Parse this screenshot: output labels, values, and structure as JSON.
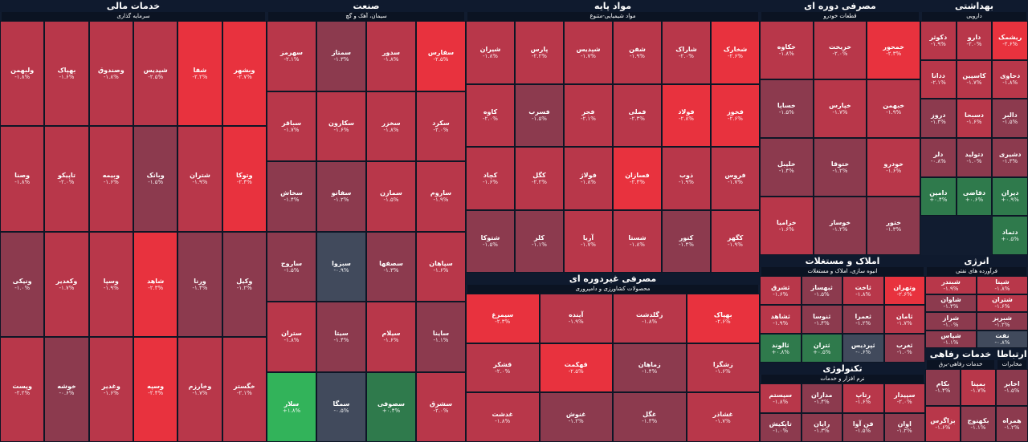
{
  "colors": {
    "background": "#0f1a2e",
    "strong_negative": "#e8323e",
    "negative": "#b8374a",
    "mild_negative": "#8c3a4e",
    "neutral": "#414a5c",
    "mild_positive": "#2f7a4c",
    "positive": "#32b35a",
    "strong_positive": "#3fe05f"
  },
  "sectors": [
    {
      "id": "financial",
      "title": "خدمات مالی",
      "sub": "سرمایه گذاری",
      "tiles": [
        {
          "name": "وبشهر",
          "val": "-۲.۷%",
          "c": "strong_negative"
        },
        {
          "name": "شفا",
          "val": "-۲.۲%",
          "c": "strong_negative"
        },
        {
          "name": "شپدیس",
          "val": "-۲.۵%",
          "c": "negative"
        },
        {
          "name": "وصندوق",
          "val": "-۱.۸%",
          "c": "negative"
        },
        {
          "name": "بهپاک",
          "val": "-۱.۶%",
          "c": "negative"
        },
        {
          "name": "ولبهمن",
          "val": "-۱.۸%",
          "c": "negative"
        },
        {
          "name": "وتوکا",
          "val": "-۲.۴%",
          "c": "strong_negative"
        },
        {
          "name": "شتران",
          "val": "-۱.۹%",
          "c": "negative"
        },
        {
          "name": "وبانک",
          "val": "-۱.۵%",
          "c": "mild_negative"
        },
        {
          "name": "وبیمه",
          "val": "-۱.۶%",
          "c": "negative"
        },
        {
          "name": "تاپیکو",
          "val": "-۲.۰%",
          "c": "negative"
        },
        {
          "name": "وصنا",
          "val": "-۱.۸%",
          "c": "negative"
        },
        {
          "name": "وکیل",
          "val": "-۱.۲%",
          "c": "mild_negative"
        },
        {
          "name": "ورنا",
          "val": "-۱.۴%",
          "c": "mild_negative"
        },
        {
          "name": "شاهد",
          "val": "-۲.۳%",
          "c": "strong_negative"
        },
        {
          "name": "وسپا",
          "val": "-۱.۹%",
          "c": "negative"
        },
        {
          "name": "وکغدیر",
          "val": "-۱.۷%",
          "c": "negative"
        },
        {
          "name": "ونیکی",
          "val": "-۱.۰%",
          "c": "mild_negative"
        },
        {
          "name": "خگستر",
          "val": "-۲.۱%",
          "c": "negative"
        },
        {
          "name": "وخارزم",
          "val": "-۱.۷%",
          "c": "negative"
        },
        {
          "name": "وسپه",
          "val": "-۲.۴%",
          "c": "strong_negative"
        },
        {
          "name": "وغدیر",
          "val": "-۱.۶%",
          "c": "negative"
        },
        {
          "name": "خوشه",
          "val": "-۰.۶%",
          "c": "mild_negative"
        },
        {
          "name": "وپست",
          "val": "-۲.۲%",
          "c": "negative"
        }
      ]
    },
    {
      "id": "industry",
      "title": "صنعت",
      "sub": "سیمان، آهک و گچ",
      "tiles": [
        {
          "name": "سفارس",
          "val": "-۲.۵%",
          "c": "strong_negative"
        },
        {
          "name": "سدور",
          "val": "-۱.۸%",
          "c": "negative"
        },
        {
          "name": "سمتاز",
          "val": "-۱.۳%",
          "c": "mild_negative"
        },
        {
          "name": "سهرمز",
          "val": "-۲.۱%",
          "c": "negative"
        },
        {
          "name": "سکرد",
          "val": "-۲.۰%",
          "c": "negative"
        },
        {
          "name": "سخزر",
          "val": "-۱.۸%",
          "c": "negative"
        },
        {
          "name": "سکارون",
          "val": "-۱.۶%",
          "c": "negative"
        },
        {
          "name": "سباقر",
          "val": "-۱.۷%",
          "c": "negative"
        },
        {
          "name": "ساروم",
          "val": "-۱.۹%",
          "c": "negative"
        },
        {
          "name": "سمازن",
          "val": "-۱.۵%",
          "c": "negative"
        },
        {
          "name": "سفانو",
          "val": "-۱.۲%",
          "c": "mild_negative"
        },
        {
          "name": "سخاش",
          "val": "-۱.۴%",
          "c": "mild_negative"
        },
        {
          "name": "سپاهان",
          "val": "-۱.۶%",
          "c": "negative"
        },
        {
          "name": "سصفها",
          "val": "-۱.۳%",
          "c": "mild_negative"
        },
        {
          "name": "سبزوا",
          "val": "-۰.۹%",
          "c": "neutral"
        },
        {
          "name": "ساروج",
          "val": "-۱.۵%",
          "c": "mild_negative"
        },
        {
          "name": "ساینا",
          "val": "-۱.۱%",
          "c": "mild_negative"
        },
        {
          "name": "سیلام",
          "val": "-۱.۶%",
          "c": "negative"
        },
        {
          "name": "سیتا",
          "val": "-۱.۴%",
          "c": "mild_negative"
        },
        {
          "name": "ستران",
          "val": "-۱.۸%",
          "c": "negative"
        },
        {
          "name": "سشرق",
          "val": "-۲.۰%",
          "c": "negative"
        },
        {
          "name": "سصوفی",
          "val": "+۰.۴%",
          "c": "mild_positive"
        },
        {
          "name": "سمگا",
          "val": "-۰.۵%",
          "c": "neutral"
        },
        {
          "name": "سلار",
          "val": "+۱.۸%",
          "c": "positive"
        }
      ]
    },
    {
      "id": "basic",
      "title": "مواد پایه",
      "sub": "مواد شیمیایی-متنوع",
      "tiles": [
        {
          "name": "شخارک",
          "val": "-۲.۶%",
          "c": "strong_negative"
        },
        {
          "name": "شاراک",
          "val": "-۲.۰%",
          "c": "negative"
        },
        {
          "name": "شفن",
          "val": "-۱.۹%",
          "c": "negative"
        },
        {
          "name": "شپدیس",
          "val": "-۱.۷%",
          "c": "negative"
        },
        {
          "name": "پارس",
          "val": "-۲.۲%",
          "c": "negative"
        },
        {
          "name": "شیران",
          "val": "-۱.۸%",
          "c": "negative"
        },
        {
          "name": "فخوز",
          "val": "-۲.۶%",
          "c": "strong_negative"
        },
        {
          "name": "فولاد",
          "val": "-۲.۸%",
          "c": "strong_negative"
        },
        {
          "name": "فملی",
          "val": "-۲.۳%",
          "c": "negative"
        },
        {
          "name": "فجر",
          "val": "-۲.۱%",
          "c": "negative"
        },
        {
          "name": "فسرب",
          "val": "-۱.۵%",
          "c": "mild_negative"
        },
        {
          "name": "کاوه",
          "val": "-۲.۰%",
          "c": "negative"
        },
        {
          "name": "فروس",
          "val": "-۱.۷%",
          "c": "negative"
        },
        {
          "name": "ذوب",
          "val": "-۱.۹%",
          "c": "negative"
        },
        {
          "name": "فسازان",
          "val": "-۲.۴%",
          "c": "strong_negative"
        },
        {
          "name": "فولاژ",
          "val": "-۱.۸%",
          "c": "negative"
        },
        {
          "name": "کگل",
          "val": "-۲.۲%",
          "c": "negative"
        },
        {
          "name": "کچاد",
          "val": "-۱.۶%",
          "c": "negative"
        },
        {
          "name": "کگهر",
          "val": "-۱.۹%",
          "c": "negative"
        },
        {
          "name": "کنور",
          "val": "-۱.۴%",
          "c": "mild_negative"
        },
        {
          "name": "شستا",
          "val": "-۱.۸%",
          "c": "negative"
        },
        {
          "name": "آریا",
          "val": "-۱.۷%",
          "c": "negative"
        },
        {
          "name": "کلر",
          "val": "-۱.۱%",
          "c": "mild_negative"
        },
        {
          "name": "شتوکا",
          "val": "-۱.۵%",
          "c": "mild_negative"
        }
      ]
    },
    {
      "id": "periodic",
      "title": "مصرفی دوره ای",
      "sub": "قطعات خودرو",
      "tiles": [
        {
          "name": "خمحور",
          "val": "-۲.۳%",
          "c": "strong_negative"
        },
        {
          "name": "خریخت",
          "val": "-۲.۰%",
          "c": "negative"
        },
        {
          "name": "خکاوه",
          "val": "-۱.۸%",
          "c": "negative"
        },
        {
          "name": "خبهمن",
          "val": "-۱.۹%",
          "c": "negative"
        },
        {
          "name": "خپارس",
          "val": "-۱.۷%",
          "c": "negative"
        },
        {
          "name": "خساپا",
          "val": "-۱.۵%",
          "c": "mild_negative"
        },
        {
          "name": "خودرو",
          "val": "-۱.۶%",
          "c": "negative"
        },
        {
          "name": "ختوقا",
          "val": "-۱.۲%",
          "c": "mild_negative"
        },
        {
          "name": "خلیبل",
          "val": "-۱.۴%",
          "c": "mild_negative"
        },
        {
          "name": "ختور",
          "val": "-۱.۳%",
          "c": "mild_negative"
        },
        {
          "name": "خوساز",
          "val": "-۱.۲%",
          "c": "mild_negative"
        },
        {
          "name": "خزامیا",
          "val": "-۱.۶%",
          "c": "negative"
        }
      ]
    },
    {
      "id": "health",
      "title": "بهداشتی",
      "sub": "دارویی",
      "tiles": [
        {
          "name": "ریشمک",
          "val": "-۲.۶%",
          "c": "strong_negative"
        },
        {
          "name": "دارو",
          "val": "-۲.۰%",
          "c": "negative"
        },
        {
          "name": "دکوثر",
          "val": "-۱.۹%",
          "c": "negative"
        },
        {
          "name": "دحاوی",
          "val": "-۱.۸%",
          "c": "negative"
        },
        {
          "name": "کاسپین",
          "val": "-۱.۷%",
          "c": "negative"
        },
        {
          "name": "ددانا",
          "val": "-۲.۱%",
          "c": "negative"
        },
        {
          "name": "دالبر",
          "val": "-۱.۵%",
          "c": "mild_negative"
        },
        {
          "name": "دسبحا",
          "val": "-۱.۶%",
          "c": "negative"
        },
        {
          "name": "دروز",
          "val": "-۱.۴%",
          "c": "mild_negative"
        },
        {
          "name": "دشیری",
          "val": "-۱.۳%",
          "c": "mild_negative"
        },
        {
          "name": "دتولید",
          "val": "-۱.۰%",
          "c": "mild_negative"
        },
        {
          "name": "دلر",
          "val": "-۰.۸%",
          "c": "mild_negative"
        },
        {
          "name": "دیران",
          "val": "+۰.۹%",
          "c": "mild_positive"
        },
        {
          "name": "دقاضی",
          "val": "+۰.۶%",
          "c": "mild_positive"
        },
        {
          "name": "دامین",
          "val": "+۰.۴%",
          "c": "mild_positive"
        },
        {
          "name": "دتماد",
          "val": "+۰.۵%",
          "c": "mild_positive"
        }
      ]
    },
    {
      "id": "nonperiodic",
      "title": "مصرفی غیردوره ای",
      "sub": "محصولات کشاورزی و دامپروری",
      "tiles": [
        {
          "name": "بهپاک",
          "val": "-۲.۶%",
          "c": "strong_negative"
        },
        {
          "name": "زگلدشت",
          "val": "-۱.۸%",
          "c": "negative"
        },
        {
          "name": "آینده",
          "val": "-۱.۹%",
          "c": "negative"
        },
        {
          "name": "سیمرغ",
          "val": "-۲.۳%",
          "c": "strong_negative"
        },
        {
          "name": "زشگزا",
          "val": "-۱.۶%",
          "c": "negative"
        },
        {
          "name": "زماهان",
          "val": "-۱.۴%",
          "c": "mild_negative"
        },
        {
          "name": "قهکمت",
          "val": "-۲.۵%",
          "c": "strong_negative"
        },
        {
          "name": "قشکر",
          "val": "-۲.۰%",
          "c": "negative"
        },
        {
          "name": "غشاذر",
          "val": "-۱.۷%",
          "c": "negative"
        },
        {
          "name": "غگل",
          "val": "-۱.۳%",
          "c": "mild_negative"
        },
        {
          "name": "غنوش",
          "val": "-۱.۲%",
          "c": "mild_negative"
        },
        {
          "name": "غدشت",
          "val": "-۱.۸%",
          "c": "negative"
        }
      ]
    },
    {
      "id": "property",
      "title": "املاک و مستغلات",
      "sub": "انبوه سازی، املاک و مستغلات",
      "tiles": [
        {
          "name": "وتهران",
          "val": "-۲.۶%",
          "c": "strong_negative"
        },
        {
          "name": "ثاخت",
          "val": "-۱.۸%",
          "c": "negative"
        },
        {
          "name": "ثبهساز",
          "val": "-۱.۵%",
          "c": "mild_negative"
        },
        {
          "name": "ثشرق",
          "val": "-۱.۶%",
          "c": "negative"
        },
        {
          "name": "ثامان",
          "val": "-۱.۷%",
          "c": "negative"
        },
        {
          "name": "ثعمرا",
          "val": "-۱.۲%",
          "c": "mild_negative"
        },
        {
          "name": "ثنوسا",
          "val": "-۱.۴%",
          "c": "mild_negative"
        },
        {
          "name": "ثشاهد",
          "val": "-۱.۹%",
          "c": "negative"
        },
        {
          "name": "ثغرب",
          "val": "-۱.۰%",
          "c": "mild_negative"
        },
        {
          "name": "ثپردیس",
          "val": "-۰.۶%",
          "c": "neutral"
        },
        {
          "name": "ثتران",
          "val": "+۰.۵%",
          "c": "mild_positive"
        },
        {
          "name": "ثالوند",
          "val": "+۰.۸%",
          "c": "mild_positive"
        }
      ]
    },
    {
      "id": "energy",
      "title": "انرژی",
      "sub": "فرآورده های نفتی",
      "tiles": [
        {
          "name": "شپنا",
          "val": "-۱.۸%",
          "c": "negative"
        },
        {
          "name": "شبندر",
          "val": "-۱.۹%",
          "c": "negative"
        },
        {
          "name": "شتران",
          "val": "-۱.۶%",
          "c": "negative"
        },
        {
          "name": "شاوان",
          "val": "-۱.۴%",
          "c": "mild_negative"
        },
        {
          "name": "شبریز",
          "val": "-۱.۲%",
          "c": "mild_negative"
        },
        {
          "name": "شراز",
          "val": "-۱.۰%",
          "c": "mild_negative"
        },
        {
          "name": "نفت",
          "val": "-۰.۸%",
          "c": "neutral"
        },
        {
          "name": "شپاس",
          "val": "-۱.۱%",
          "c": "mild_negative"
        }
      ]
    },
    {
      "id": "tech",
      "title": "تکنولوژی",
      "sub": "نرم افزار و خدمات",
      "tiles": [
        {
          "name": "سپیدار",
          "val": "-۲.۰%",
          "c": "negative"
        },
        {
          "name": "رتاپ",
          "val": "-۱.۶%",
          "c": "negative"
        },
        {
          "name": "مداران",
          "val": "-۱.۴%",
          "c": "mild_negative"
        },
        {
          "name": "سیستم",
          "val": "-۱.۸%",
          "c": "negative"
        },
        {
          "name": "اوان",
          "val": "-۱.۲%",
          "c": "mild_negative"
        },
        {
          "name": "فن آوا",
          "val": "-۱.۵%",
          "c": "mild_negative"
        },
        {
          "name": "رایان",
          "val": "-۱.۳%",
          "c": "mild_negative"
        },
        {
          "name": "تاپکیش",
          "val": "-۱.۰%",
          "c": "mild_negative"
        }
      ]
    },
    {
      "id": "telecom",
      "title": "خدمات رفاهی",
      "sub": "خدمات رفاهی-برق",
      "tiles": [
        {
          "name": "بمپنا",
          "val": "-۱.۷%",
          "c": "negative"
        },
        {
          "name": "بکام",
          "val": "-۱.۴%",
          "c": "mild_negative"
        },
        {
          "name": "بکهنوج",
          "val": "-۱.۱%",
          "c": "mild_negative"
        },
        {
          "name": "بزاگرس",
          "val": "-۱.۶%",
          "c": "negative"
        }
      ]
    },
    {
      "id": "comm",
      "title": "ارتباطا",
      "sub": "مخابرات",
      "tiles": [
        {
          "name": "اخابر",
          "val": "-۱.۵%",
          "c": "mild_negative"
        },
        {
          "name": "همراه",
          "val": "-۱.۲%",
          "c": "mild_negative"
        }
      ]
    }
  ]
}
